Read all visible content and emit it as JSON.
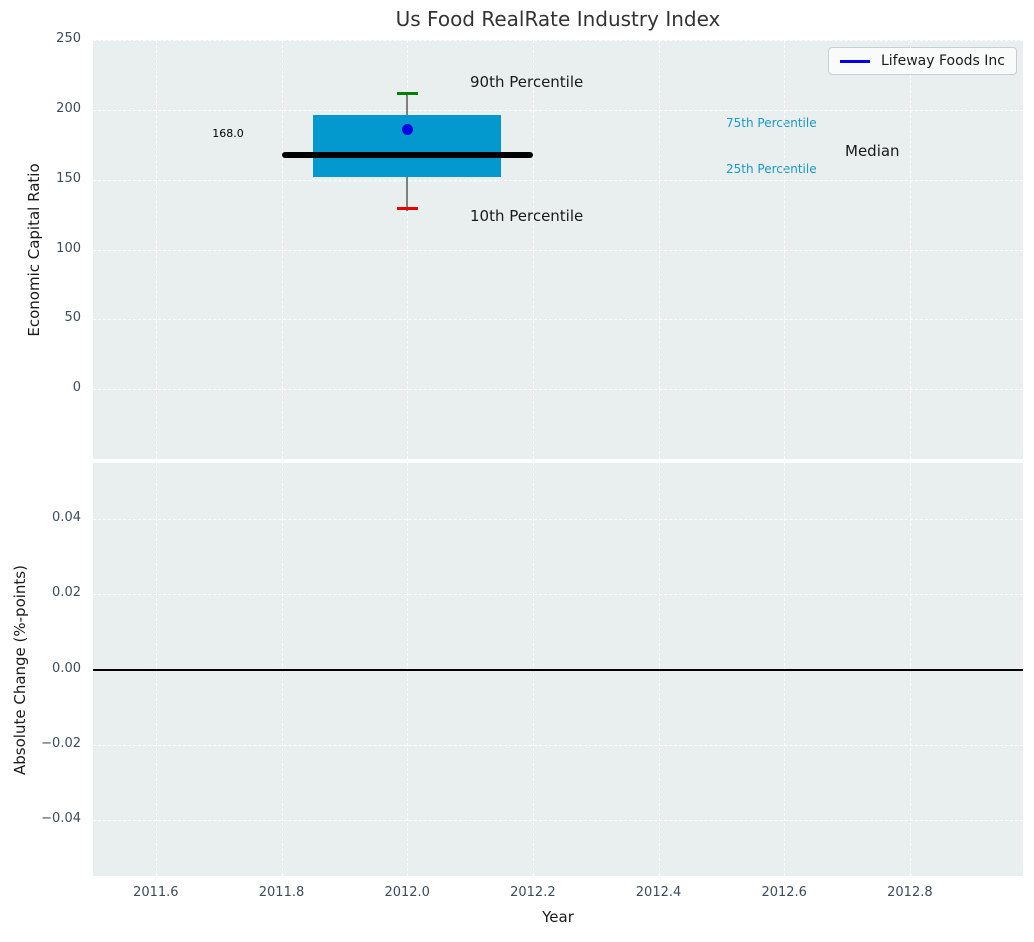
{
  "figure": {
    "background_color": "#ffffff",
    "axes_background_color": "#e9eeee",
    "grid_color": "#ffffff",
    "tick_color": "#3e4b5c"
  },
  "chart_data": [
    {
      "id": "economic_capital_ratio",
      "type": "boxplot",
      "title": "Us Food RealRate Industry Index",
      "ylabel": "Economic Capital Ratio",
      "xlabel": "",
      "xlim": [
        2011.5,
        2012.98
      ],
      "ylim": [
        -50,
        250
      ],
      "yticks": [
        0,
        50,
        100,
        150,
        200,
        250
      ],
      "ytick_labels": [
        "0",
        "50",
        "100",
        "150",
        "200",
        "250"
      ],
      "xticks": [
        2011.6,
        2011.8,
        2012.0,
        2012.2,
        2012.4,
        2012.6,
        2012.8
      ],
      "xtick_labels_visible": false,
      "grid": true,
      "legend": {
        "position": "upper right",
        "entries": [
          {
            "label": "Lifeway Foods Inc",
            "color": "#0000ee"
          }
        ]
      },
      "box": {
        "x": 2012.0,
        "box_x_range": [
          2011.85,
          2012.15
        ],
        "median_x_range": [
          2011.8,
          2012.2
        ],
        "cap_half_width_years": 0.017,
        "p10": 129,
        "p25": 152,
        "median": 168.0,
        "p75": 196,
        "p90": 212,
        "box_color": "#0499ce",
        "median_color": "#000000",
        "whisker_color": "#7f7f7f",
        "p90_cap_color": "#008000",
        "p10_cap_color": "#ee0000"
      },
      "company_point": {
        "name": "Lifeway Foods Inc",
        "x": 2012.0,
        "y": 186,
        "color": "#0000e0"
      },
      "annotations": {
        "median_value": {
          "text": "168.0",
          "color": "#000000"
        },
        "p90": {
          "text": "90th Percentile",
          "color": "#1a1a1a"
        },
        "p10": {
          "text": "10th Percentile",
          "color": "#1a1a1a"
        },
        "p75": {
          "text": "75th Percentile",
          "color": "#1a98c8"
        },
        "p25": {
          "text": "25th Percentile",
          "color": "#1a98c8"
        },
        "median": {
          "text": "Median",
          "color": "#1a1a1a"
        }
      }
    },
    {
      "id": "absolute_change",
      "type": "line",
      "ylabel": "Absolute Change (%-points)",
      "xlabel": "Year",
      "xlim": [
        2011.5,
        2012.98
      ],
      "ylim": [
        -0.055,
        0.055
      ],
      "yticks": [
        0.04,
        0.02,
        0.0,
        -0.02,
        -0.04
      ],
      "ytick_labels": [
        "0.04",
        "0.02",
        "0.00",
        "−0.02",
        "−0.04"
      ],
      "xticks": [
        2011.6,
        2011.8,
        2012.0,
        2012.2,
        2012.4,
        2012.6,
        2012.8
      ],
      "xtick_labels": [
        "2011.6",
        "2011.8",
        "2012.0",
        "2012.2",
        "2012.4",
        "2012.6",
        "2012.8"
      ],
      "grid": true,
      "zero_line": {
        "y": 0.0,
        "color": "#000000"
      },
      "series": []
    }
  ]
}
